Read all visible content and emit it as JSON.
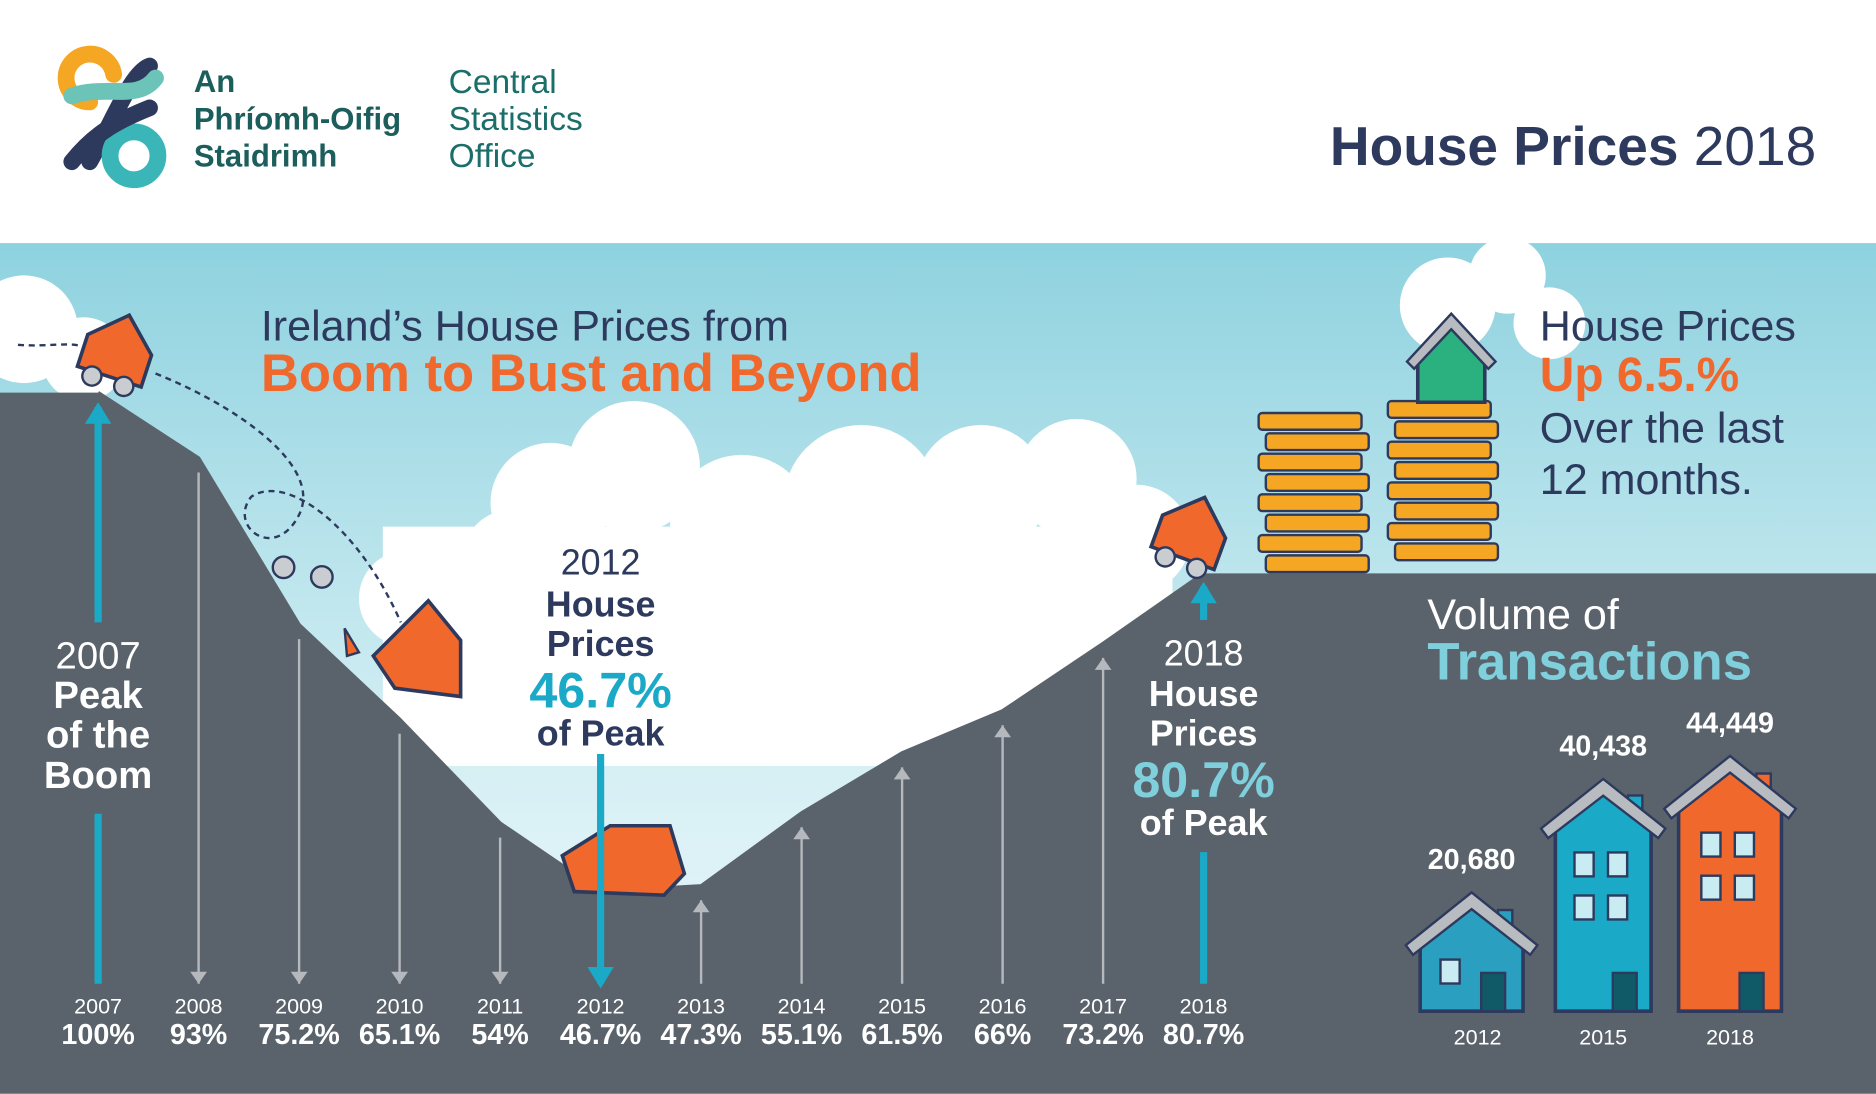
{
  "header": {
    "logo_irish": [
      "An",
      "Phríomh-Oifig",
      "Staidrimh"
    ],
    "logo_english": [
      "Central",
      "Statistics",
      "Office"
    ],
    "title_bold": "House Prices",
    "title_year": "2018"
  },
  "callout": [
    "House Prices",
    "Up 6.5.%",
    "Over the last",
    "12 months."
  ],
  "chart_data": [
    {
      "type": "area",
      "title": "Ireland’s House Prices from",
      "subtitle": "Boom to Bust and Beyond",
      "categories": [
        "2007",
        "2008",
        "2009",
        "2010",
        "2011",
        "2012",
        "2013",
        "2014",
        "2015",
        "2016",
        "2017",
        "2018"
      ],
      "values": [
        100,
        93,
        75.2,
        65.1,
        54,
        46.7,
        47.3,
        55.1,
        61.5,
        66,
        73.2,
        80.7
      ],
      "value_labels": [
        "100%",
        "93%",
        "75.2%",
        "65.1%",
        "54%",
        "46.7%",
        "47.3%",
        "55.1%",
        "61.5%",
        "66%",
        "73.2%",
        "80.7%"
      ],
      "color": "#5a636b",
      "annotations": [
        {
          "index": 0,
          "lines": [
            "2007",
            "Peak",
            "of the",
            "Boom"
          ]
        },
        {
          "index": 5,
          "lines": [
            "2012",
            "House",
            "Prices",
            "46.7%",
            "of Peak"
          ]
        },
        {
          "index": 11,
          "lines": [
            "2018",
            "House",
            "Prices",
            "80.7%",
            "of Peak"
          ]
        }
      ]
    },
    {
      "type": "bar",
      "title": "Volume of",
      "subtitle": "Transactions",
      "categories": [
        "2012",
        "2015",
        "2018"
      ],
      "values": [
        20680,
        40438,
        44449
      ],
      "value_labels": [
        "20,680",
        "40,438",
        "44,449"
      ],
      "colors": [
        "#2a9fc0",
        "#1aa9c6",
        "#f0682c"
      ]
    }
  ]
}
